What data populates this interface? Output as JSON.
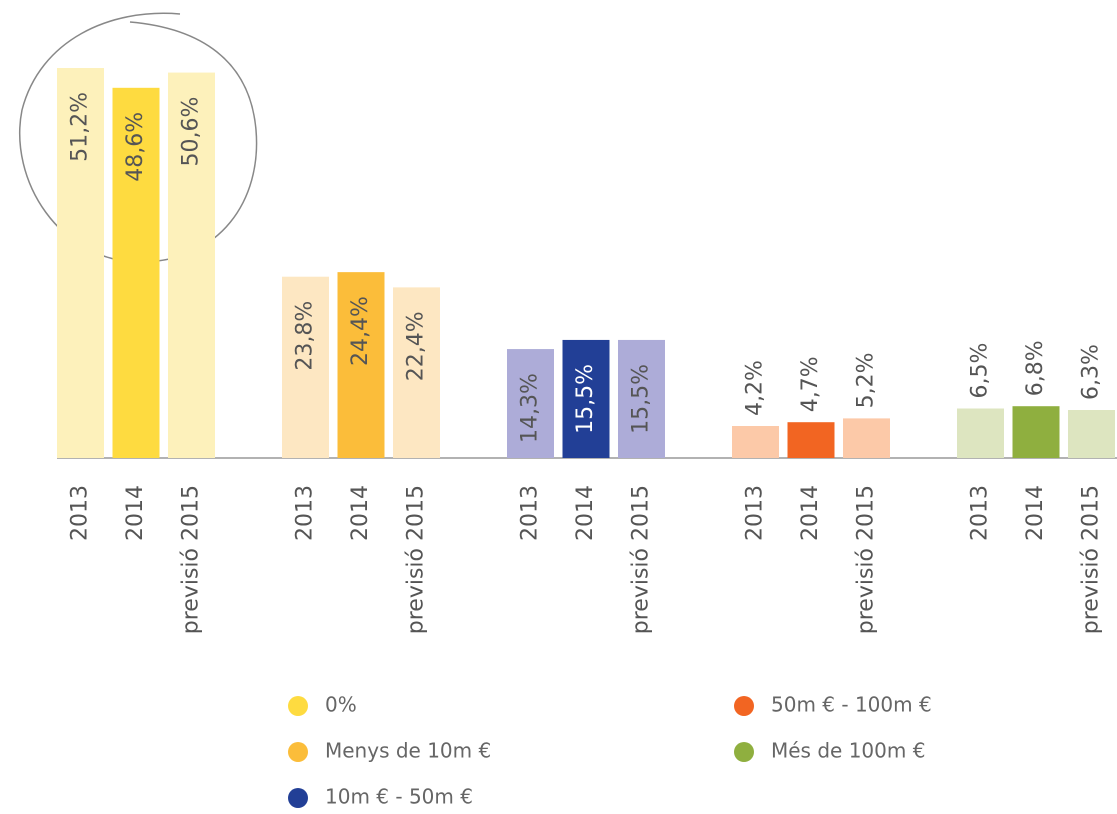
{
  "chart_data": {
    "type": "bar",
    "categories": [
      "2013",
      "2014",
      "previsió 2015"
    ],
    "series": [
      {
        "name": "0%",
        "colors": [
          "#fdf1bb",
          "#fedb40",
          "#fdf1bb"
        ],
        "values": [
          51.2,
          48.6,
          50.6
        ],
        "value_labels": [
          "51,2%",
          "48,6%",
          "50,6%"
        ]
      },
      {
        "name": "Menys de 10m €",
        "colors": [
          "#fde7c2",
          "#fbbd3a",
          "#fde7c2"
        ],
        "values": [
          23.8,
          24.4,
          22.4
        ],
        "value_labels": [
          "23,8%",
          "24,4%",
          "22,4%"
        ]
      },
      {
        "name": "10m € - 50m €",
        "colors": [
          "#adacd8",
          "#223f96",
          "#adacd8"
        ],
        "values": [
          14.3,
          15.5,
          15.5
        ],
        "value_labels": [
          "14,3%",
          "15,5%",
          "15,5%"
        ]
      },
      {
        "name": "50m € - 100m €",
        "colors": [
          "#fcc9a8",
          "#f26522",
          "#fcc9a8"
        ],
        "values": [
          4.2,
          4.7,
          5.2
        ],
        "value_labels": [
          "4,2%",
          "4,7%",
          "5,2%"
        ]
      },
      {
        "name": "Més de 100m €",
        "colors": [
          "#dde5c0",
          "#8faf3f",
          "#dde5c0"
        ],
        "values": [
          6.5,
          6.8,
          6.3
        ],
        "value_labels": [
          "6,5%",
          "6,8%",
          "6,3%"
        ]
      }
    ]
  }
}
